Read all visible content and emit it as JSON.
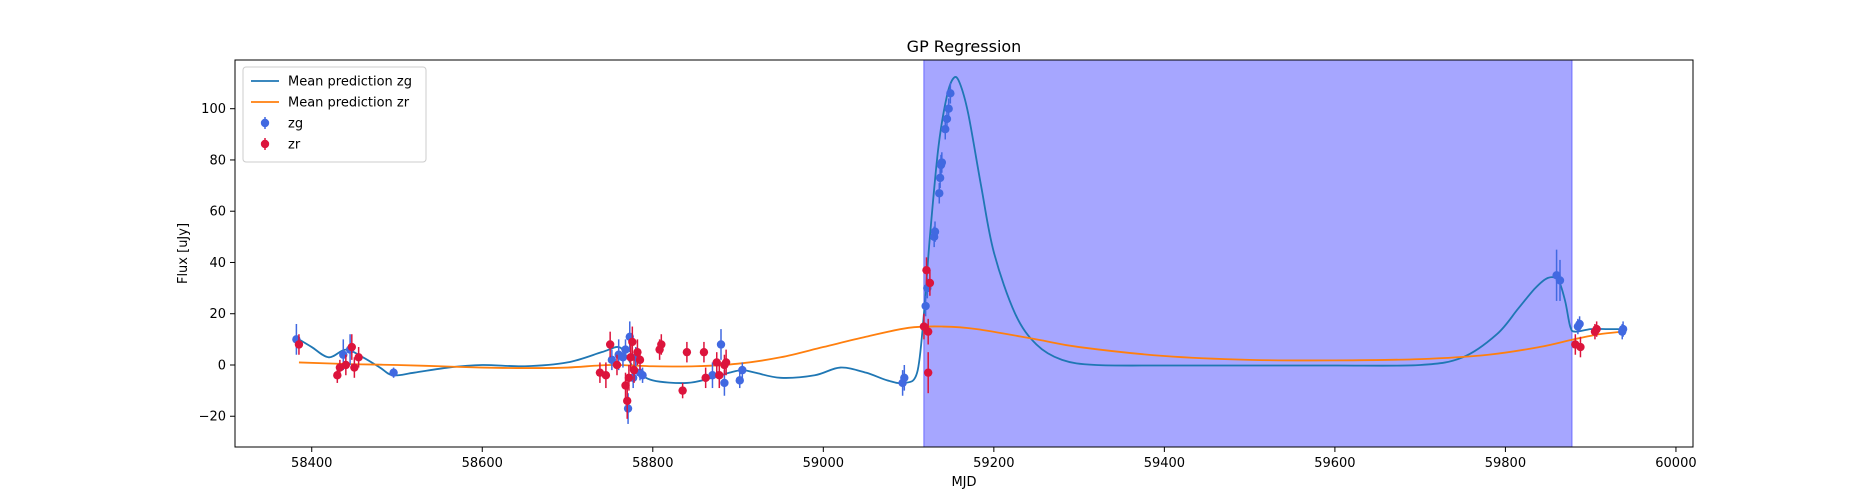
{
  "chart_data": {
    "type": "scatter",
    "title": "GP Regression",
    "xlabel": "MJD",
    "ylabel": "Flux [uJy]",
    "xlim": [
      58310,
      60020
    ],
    "ylim": [
      -32,
      119
    ],
    "xticks": [
      58400,
      58600,
      58800,
      59000,
      59200,
      59400,
      59600,
      59800,
      60000
    ],
    "yticks": [
      -20,
      0,
      20,
      40,
      60,
      80,
      100
    ],
    "grid": false,
    "legend_position": "top-left",
    "shaded_region": {
      "x_start": 59118,
      "x_end": 59878,
      "color": "#a6a6ff"
    },
    "series": [
      {
        "name": "Mean prediction zg",
        "kind": "line",
        "color": "#1f77b4",
        "x": [
          58385,
          58400,
          58420,
          58440,
          58460,
          58480,
          58495,
          58520,
          58560,
          58600,
          58650,
          58700,
          58740,
          58760,
          58770,
          58780,
          58800,
          58840,
          58870,
          58890,
          58905,
          58920,
          58950,
          58990,
          59020,
          59050,
          59075,
          59095,
          59110,
          59118,
          59125,
          59135,
          59145,
          59153,
          59160,
          59170,
          59185,
          59200,
          59225,
          59250,
          59280,
          59320,
          59400,
          59500,
          59600,
          59700,
          59750,
          59790,
          59815,
          59835,
          59850,
          59862,
          59870,
          59876,
          59882,
          59900,
          59920,
          59937
        ],
        "y": [
          10,
          7,
          3,
          6,
          3,
          -1,
          -4,
          -3,
          -1,
          0,
          -0.5,
          1,
          5,
          7,
          3,
          -2,
          -6,
          -7,
          -5,
          -3,
          -2,
          -3,
          -5,
          -4,
          -1,
          -3,
          -6,
          -7,
          -3,
          20,
          50,
          85,
          105,
          112,
          110,
          98,
          70,
          44,
          20,
          8,
          2,
          0,
          -0.2,
          -0.2,
          -0.2,
          0,
          3,
          12,
          22,
          30,
          34,
          33,
          25,
          15,
          13,
          14,
          14,
          14
        ]
      },
      {
        "name": "Mean prediction zr",
        "kind": "line",
        "color": "#ff7f0e",
        "x": [
          58385,
          58450,
          58500,
          58550,
          58600,
          58650,
          58700,
          58750,
          58800,
          58850,
          58900,
          58950,
          59000,
          59050,
          59100,
          59140,
          59180,
          59250,
          59300,
          59400,
          59500,
          59600,
          59700,
          59780,
          59840,
          59880,
          59910,
          59937
        ],
        "y": [
          1,
          0.3,
          0,
          -0.5,
          -1,
          -1.2,
          -1,
          0,
          -0.5,
          -0.5,
          0.5,
          3,
          7,
          11,
          14.5,
          15,
          14,
          10,
          7,
          3.5,
          2,
          1.8,
          2.3,
          4,
          7,
          10,
          12,
          13
        ]
      },
      {
        "name": "zg",
        "kind": "errorbar",
        "color": "#4169e1",
        "points": [
          [
            58382,
            10,
            6
          ],
          [
            58437,
            4,
            6
          ],
          [
            58445,
            6,
            6
          ],
          [
            58496,
            -3,
            2
          ],
          [
            58752,
            2,
            4
          ],
          [
            58760,
            4,
            6
          ],
          [
            58765,
            3,
            4
          ],
          [
            58768,
            6,
            4
          ],
          [
            58771,
            -17,
            6
          ],
          [
            58773,
            11,
            6
          ],
          [
            58777,
            -5,
            4
          ],
          [
            58780,
            3,
            4
          ],
          [
            58785,
            -3,
            3
          ],
          [
            58788,
            -4,
            3
          ],
          [
            58870,
            -4,
            5
          ],
          [
            58880,
            8,
            6
          ],
          [
            58884,
            -7,
            5
          ],
          [
            58902,
            -6,
            3
          ],
          [
            58905,
            -2,
            3
          ],
          [
            59093,
            -7,
            5
          ],
          [
            59095,
            -5,
            5
          ],
          [
            59120,
            23,
            4
          ],
          [
            59122,
            30,
            4
          ],
          [
            59130,
            50,
            4
          ],
          [
            59131,
            52,
            4
          ],
          [
            59136,
            67,
            4
          ],
          [
            59137,
            73,
            4
          ],
          [
            59138,
            78,
            4
          ],
          [
            59139,
            79,
            4
          ],
          [
            59143,
            92,
            4
          ],
          [
            59145,
            96,
            4
          ],
          [
            59147,
            100,
            4
          ],
          [
            59149,
            106,
            4
          ],
          [
            59860,
            35,
            10
          ],
          [
            59864,
            33,
            8
          ],
          [
            59885,
            15,
            3
          ],
          [
            59887,
            16,
            3
          ],
          [
            59937,
            13,
            3
          ],
          [
            59938,
            14,
            3
          ]
        ]
      },
      {
        "name": "zr",
        "kind": "errorbar",
        "color": "#dc143c",
        "points": [
          [
            58385,
            8,
            4
          ],
          [
            58430,
            -4,
            3
          ],
          [
            58433,
            -1,
            3
          ],
          [
            58440,
            0,
            4
          ],
          [
            58447,
            7,
            5
          ],
          [
            58450,
            -1,
            4
          ],
          [
            58455,
            3,
            4
          ],
          [
            58738,
            -3,
            4
          ],
          [
            58745,
            -4,
            5
          ],
          [
            58750,
            8,
            5
          ],
          [
            58758,
            0,
            4
          ],
          [
            58768,
            -8,
            5
          ],
          [
            58770,
            -14,
            7
          ],
          [
            58772,
            -5,
            5
          ],
          [
            58774,
            3,
            5
          ],
          [
            58776,
            9,
            6
          ],
          [
            58778,
            -2,
            5
          ],
          [
            58782,
            5,
            5
          ],
          [
            58785,
            2,
            4
          ],
          [
            58808,
            6,
            4
          ],
          [
            58810,
            8,
            4
          ],
          [
            58835,
            -10,
            3
          ],
          [
            58840,
            5,
            4
          ],
          [
            58860,
            5,
            4
          ],
          [
            58862,
            -5,
            4
          ],
          [
            58875,
            1,
            4
          ],
          [
            58878,
            -4,
            5
          ],
          [
            58884,
            0,
            4
          ],
          [
            58886,
            1,
            5
          ],
          [
            59118,
            15,
            5
          ],
          [
            59121,
            37,
            5
          ],
          [
            59123,
            13,
            5
          ],
          [
            59125,
            32,
            5
          ],
          [
            59123,
            -3,
            8
          ],
          [
            59882,
            8,
            4
          ],
          [
            59888,
            7,
            4
          ],
          [
            59905,
            13,
            3
          ],
          [
            59907,
            14,
            3
          ]
        ]
      }
    ]
  }
}
